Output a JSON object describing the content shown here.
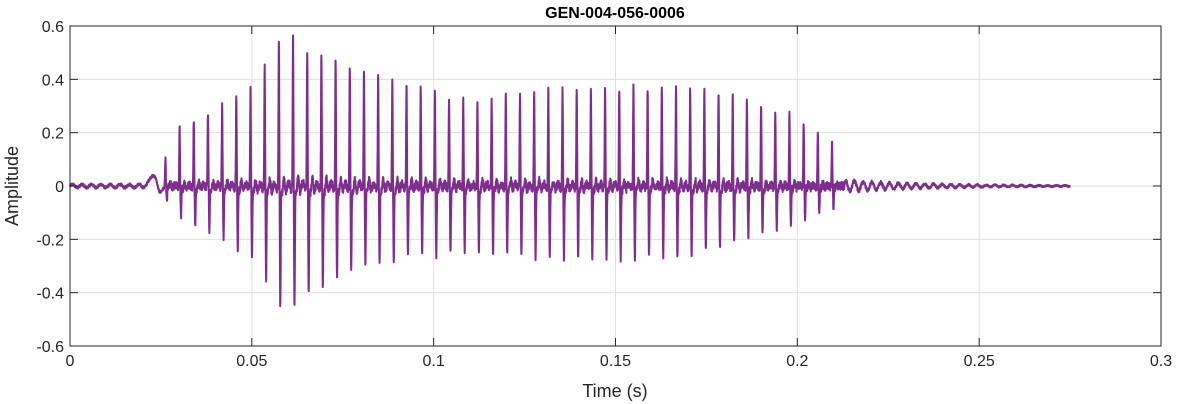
{
  "chart_data": {
    "type": "line",
    "title": "GEN-004-056-0006",
    "xlabel": "Time (s)",
    "ylabel": "Amplitude",
    "xlim": [
      0,
      0.3
    ],
    "ylim": [
      -0.6,
      0.6
    ],
    "x_ticks": [
      0,
      0.05,
      0.1,
      0.15,
      0.2,
      0.25,
      0.3
    ],
    "x_tick_labels": [
      "0",
      "0.05",
      "0.1",
      "0.15",
      "0.2",
      "0.25",
      "0.3"
    ],
    "y_ticks": [
      -0.6,
      -0.4,
      -0.2,
      0,
      0.2,
      0.4,
      0.6
    ],
    "y_tick_labels": [
      "-0.6",
      "-0.4",
      "-0.2",
      "0",
      "0.2",
      "0.4",
      "0.6"
    ],
    "grid": true,
    "line_color": "#7E2F8E",
    "series": [
      {
        "signal_start_s": 0,
        "signal_end_s": 0.275,
        "voicing_start_s": 0.026,
        "voicing_end_s": 0.213,
        "pitch_period_s": 0.0039,
        "envelope": {
          "t": [
            0.022,
            0.026,
            0.03,
            0.04,
            0.05,
            0.055,
            0.058,
            0.06,
            0.065,
            0.08,
            0.09,
            0.11,
            0.13,
            0.15,
            0.17,
            0.185,
            0.2,
            0.21,
            0.214
          ],
          "peak_max": [
            0.04,
            0.08,
            0.2,
            0.27,
            0.33,
            0.43,
            0.49,
            0.52,
            0.47,
            0.4,
            0.36,
            0.28,
            0.33,
            0.33,
            0.34,
            0.3,
            0.24,
            0.15,
            0.03
          ],
          "trough_min": [
            -0.04,
            -0.05,
            -0.12,
            -0.17,
            -0.27,
            -0.38,
            -0.46,
            -0.48,
            -0.4,
            -0.3,
            -0.27,
            -0.25,
            -0.27,
            -0.27,
            -0.26,
            -0.2,
            -0.14,
            -0.08,
            -0.02
          ]
        }
      }
    ]
  }
}
